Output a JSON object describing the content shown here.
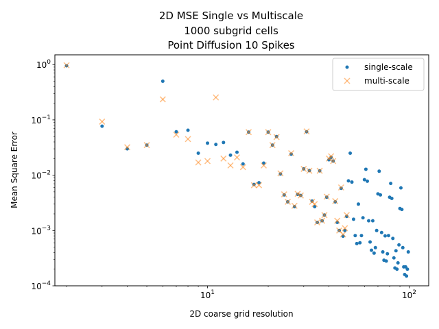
{
  "chart_data": {
    "type": "scatter",
    "title": [
      "2D MSE Single vs Multiscale",
      "1000 subgrid cells",
      "Point Diffusion 10 Spikes"
    ],
    "xlabel": "2D coarse grid resolution",
    "ylabel": "Mean Square Error",
    "xscale": "log",
    "yscale": "log",
    "xlim": [
      1.75,
      125
    ],
    "ylim": [
      0.0001,
      1.5
    ],
    "x_ticks": [
      {
        "value": 10,
        "base": "10",
        "exp": "1"
      },
      {
        "value": 100,
        "base": "10",
        "exp": "2"
      }
    ],
    "y_ticks": [
      {
        "value": 0.0001,
        "base": "10",
        "exp": "−4"
      },
      {
        "value": 0.001,
        "base": "10",
        "exp": "−3"
      },
      {
        "value": 0.01,
        "base": "10",
        "exp": "−2"
      },
      {
        "value": 0.1,
        "base": "10",
        "exp": "−1"
      },
      {
        "value": 1,
        "base": "10",
        "exp": "0"
      }
    ],
    "legend_position": "top-right",
    "series": [
      {
        "name": "single-scale",
        "marker": "circle",
        "color": "#1f77b4",
        "points": [
          [
            2,
            0.95
          ],
          [
            3,
            0.077
          ],
          [
            4,
            0.03
          ],
          [
            5,
            0.035
          ],
          [
            6,
            0.5
          ],
          [
            7,
            0.061
          ],
          [
            8,
            0.065
          ],
          [
            9,
            0.025
          ],
          [
            10,
            0.038
          ],
          [
            11,
            0.036
          ],
          [
            12,
            0.039
          ],
          [
            13,
            0.023
          ],
          [
            14,
            0.026
          ],
          [
            15,
            0.016
          ],
          [
            16,
            0.06
          ],
          [
            17,
            0.0068
          ],
          [
            18,
            0.0073
          ],
          [
            19,
            0.0165
          ],
          [
            20,
            0.06
          ],
          [
            21,
            0.035
          ],
          [
            22,
            0.05
          ],
          [
            23,
            0.0105
          ],
          [
            24,
            0.0044
          ],
          [
            25,
            0.0033
          ],
          [
            26,
            0.024
          ],
          [
            27,
            0.0027
          ],
          [
            28,
            0.0045
          ],
          [
            29,
            0.0043
          ],
          [
            30,
            0.013
          ],
          [
            31,
            0.061
          ],
          [
            32,
            0.0121
          ],
          [
            33,
            0.0034
          ],
          [
            34,
            0.0027
          ],
          [
            35,
            0.0014
          ],
          [
            36,
            0.012
          ],
          [
            37,
            0.0015
          ],
          [
            38,
            0.0019
          ],
          [
            39,
            0.004
          ],
          [
            40,
            0.019
          ],
          [
            41,
            0.021
          ],
          [
            42,
            0.018
          ],
          [
            43,
            0.0033
          ],
          [
            44,
            0.0014
          ],
          [
            45,
            0.001
          ],
          [
            46,
            0.0058
          ],
          [
            47,
            0.00079
          ],
          [
            48,
            0.001
          ],
          [
            49,
            0.0018
          ],
          [
            50,
            0.0079
          ],
          [
            51,
            0.025
          ],
          [
            52,
            0.0075
          ],
          [
            53,
            0.0016
          ],
          [
            54,
            0.00081
          ],
          [
            55,
            0.00058
          ],
          [
            56,
            0.003
          ],
          [
            57,
            0.0006
          ],
          [
            58,
            0.00081
          ],
          [
            59,
            0.0017
          ],
          [
            60,
            0.0083
          ],
          [
            61,
            0.0128
          ],
          [
            62,
            0.0078
          ],
          [
            63,
            0.0015
          ],
          [
            64,
            0.00062
          ],
          [
            65,
            0.00044
          ],
          [
            66,
            0.0015
          ],
          [
            67,
            0.00039
          ],
          [
            68,
            0.00049
          ],
          [
            69,
            0.001
          ],
          [
            70,
            0.0046
          ],
          [
            71,
            0.0118
          ],
          [
            72,
            0.0044
          ],
          [
            73,
            0.00092
          ],
          [
            74,
            0.00041
          ],
          [
            75,
            0.00029
          ],
          [
            76,
            0.0008
          ],
          [
            77,
            0.00028
          ],
          [
            78,
            0.00038
          ],
          [
            79,
            0.00081
          ],
          [
            80,
            0.004
          ],
          [
            81,
            0.0071
          ],
          [
            82,
            0.0038
          ],
          [
            83,
            0.00072
          ],
          [
            84,
            0.00032
          ],
          [
            85,
            0.00021
          ],
          [
            86,
            0.00043
          ],
          [
            87,
            0.0002
          ],
          [
            88,
            0.00026
          ],
          [
            89,
            0.00055
          ],
          [
            90,
            0.0025
          ],
          [
            91,
            0.0059
          ],
          [
            92,
            0.0024
          ],
          [
            93,
            0.00049
          ],
          [
            94,
            0.00022
          ],
          [
            95,
            0.00016
          ],
          [
            96,
            0.00022
          ],
          [
            97,
            0.00015
          ],
          [
            98,
            0.0002
          ],
          [
            99,
            0.00041
          ]
        ]
      },
      {
        "name": "multi-scale",
        "marker": "x",
        "color": "#ff7f0e",
        "points": [
          [
            2,
            0.97
          ],
          [
            3,
            0.093
          ],
          [
            4,
            0.032
          ],
          [
            5,
            0.035
          ],
          [
            6,
            0.235
          ],
          [
            7,
            0.054
          ],
          [
            8,
            0.045
          ],
          [
            9,
            0.017
          ],
          [
            10,
            0.018
          ],
          [
            11,
            0.255
          ],
          [
            12,
            0.02
          ],
          [
            13,
            0.015
          ],
          [
            14,
            0.021
          ],
          [
            15,
            0.014
          ],
          [
            16,
            0.06
          ],
          [
            17,
            0.0066
          ],
          [
            18,
            0.0066
          ],
          [
            19,
            0.015
          ],
          [
            20,
            0.06
          ],
          [
            21,
            0.035
          ],
          [
            22,
            0.049
          ],
          [
            23,
            0.0108
          ],
          [
            24,
            0.0045
          ],
          [
            25,
            0.0033
          ],
          [
            26,
            0.025
          ],
          [
            27,
            0.0028
          ],
          [
            28,
            0.0046
          ],
          [
            29,
            0.0043
          ],
          [
            30,
            0.013
          ],
          [
            31,
            0.062
          ],
          [
            32,
            0.012
          ],
          [
            33,
            0.0033
          ],
          [
            34,
            0.003
          ],
          [
            35,
            0.0014
          ],
          [
            36,
            0.012
          ],
          [
            37,
            0.0015
          ],
          [
            38,
            0.0019
          ],
          [
            39,
            0.0041
          ],
          [
            40,
            0.02
          ],
          [
            41,
            0.022
          ],
          [
            42,
            0.018
          ],
          [
            43,
            0.0034
          ],
          [
            44,
            0.0015
          ],
          [
            45,
            0.001
          ],
          [
            46,
            0.006
          ],
          [
            47,
            0.00085
          ],
          [
            48,
            0.0011
          ],
          [
            49,
            0.0019
          ]
        ]
      }
    ]
  }
}
